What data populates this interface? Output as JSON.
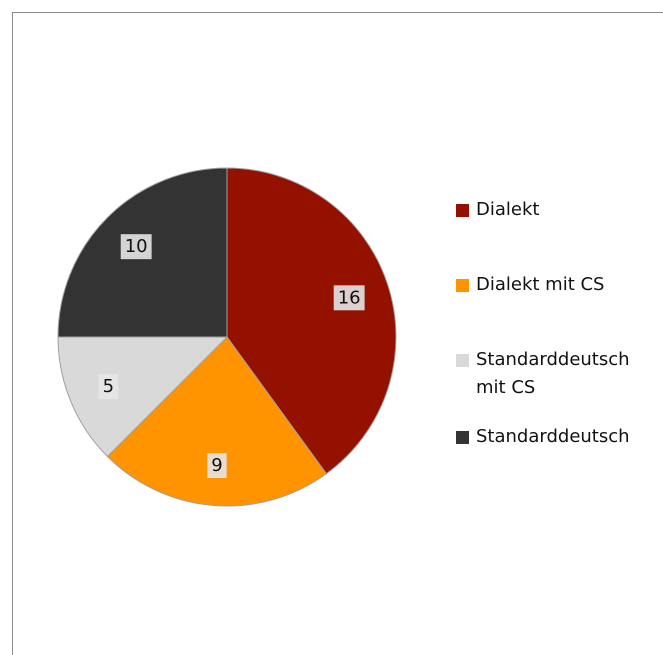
{
  "chart_data": {
    "type": "pie",
    "categories": [
      "Dialekt",
      "Dialekt mit CS",
      "Standarddeutsch mit CS",
      "Standarddeutsch"
    ],
    "values": [
      16,
      9,
      5,
      10
    ],
    "colors": [
      "#941100",
      "#ff9300",
      "#d9d9d9",
      "#333333"
    ],
    "start_angle": 0,
    "direction": "clockwise",
    "legend": "right"
  }
}
